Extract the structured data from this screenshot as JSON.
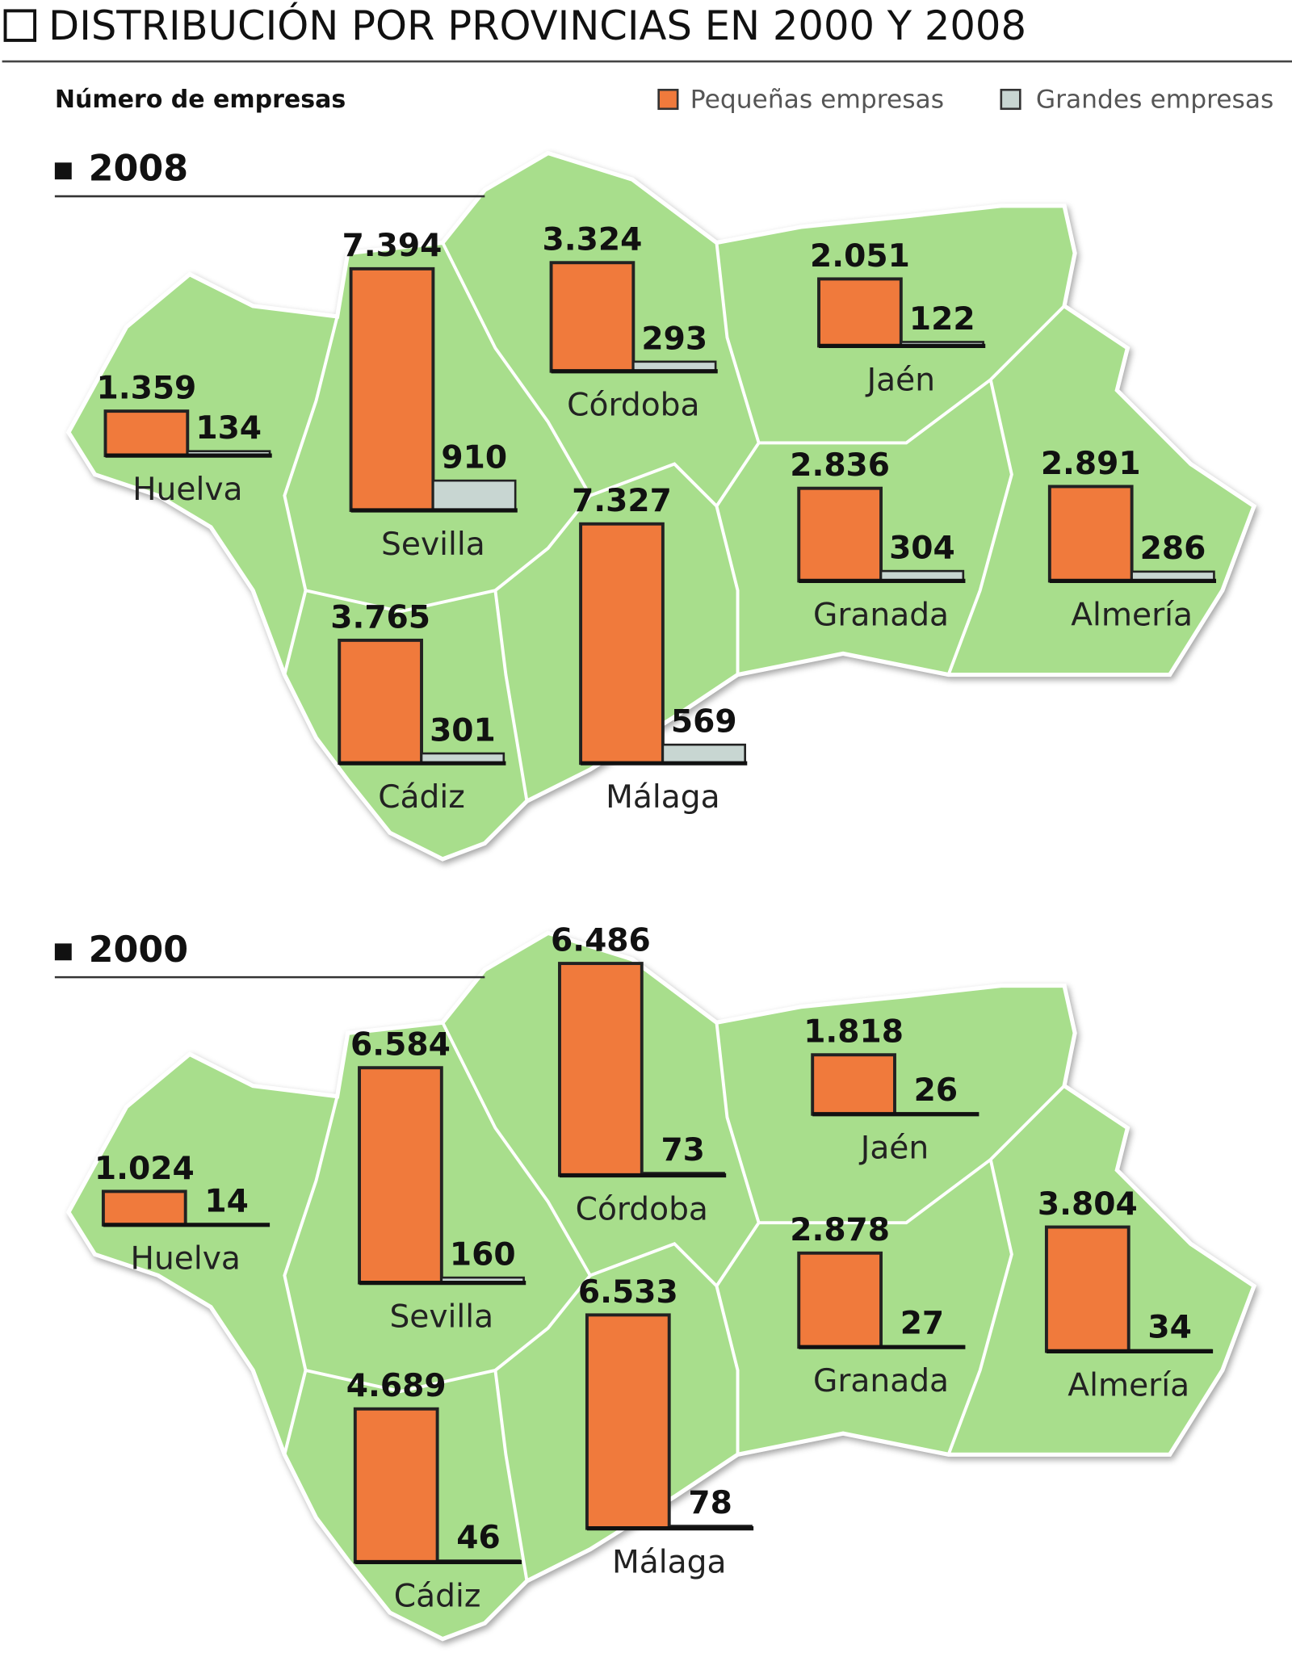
{
  "title": "DISTRIBUCIÓN POR PROVINCIAS EN 2000 Y 2008",
  "subtitle": "Número de empresas",
  "chart_data": [
    {
      "type": "bar",
      "title": "2008",
      "categories": [
        "Huelva",
        "Sevilla",
        "Córdoba",
        "Jaén",
        "Granada",
        "Almería",
        "Cádiz",
        "Málaga"
      ],
      "series": [
        {
          "name": "Pequeñas empresas",
          "color": "#f07a3c",
          "values": [
            1359,
            7394,
            3324,
            2051,
            2836,
            2891,
            3765,
            7327
          ],
          "value_labels": [
            "1.359",
            "7.394",
            "3.324",
            "2.051",
            "2.836",
            "2.891",
            "3.765",
            "7.327"
          ]
        },
        {
          "name": "Grandes empresas",
          "color": "#c8d6d2",
          "values": [
            134,
            910,
            293,
            122,
            304,
            286,
            301,
            569
          ]
        }
      ]
    },
    {
      "type": "bar",
      "title": "2000",
      "categories": [
        "Huelva",
        "Sevilla",
        "Córdoba",
        "Jaén",
        "Granada",
        "Almería",
        "Cádiz",
        "Málaga"
      ],
      "series": [
        {
          "values": [
            1024,
            6584,
            6486,
            1818,
            2878,
            3804,
            4689,
            6533
          ],
          "value_labels": [
            "1.024",
            "6.584",
            "6.486",
            "1.818",
            "2.878",
            "3.804",
            "4.689",
            "6.533"
          ]
        },
        {
          "values": [
            14,
            160,
            73,
            26,
            27,
            34,
            46,
            78
          ]
        }
      ]
    }
  ]
}
